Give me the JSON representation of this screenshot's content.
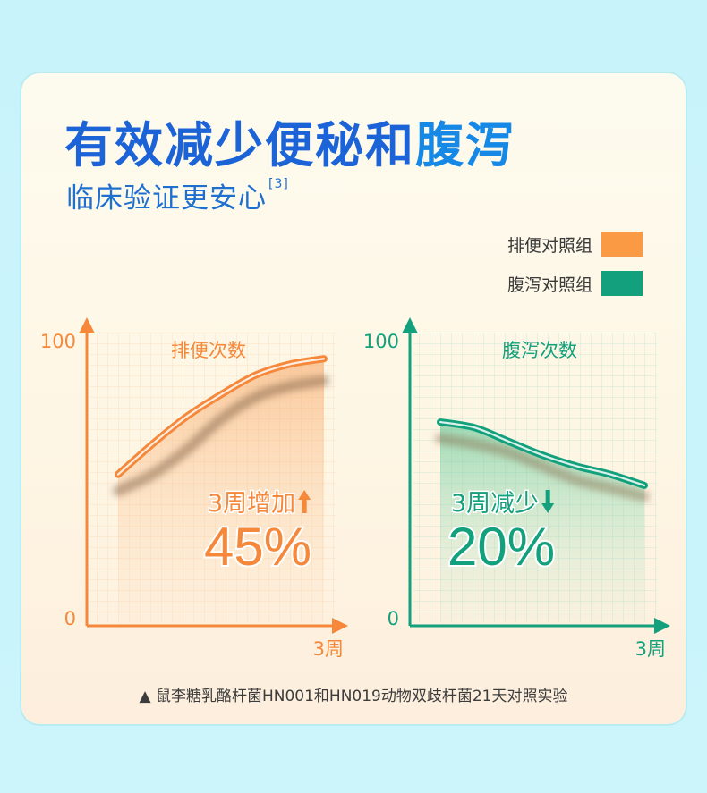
{
  "header": {
    "title_part1": "有效减少便秘和",
    "title_part2": "腹泻",
    "subtitle": "临床验证更安心",
    "citation": "[3]"
  },
  "legend": [
    {
      "label": "排便对照组",
      "color": "#fb9a45"
    },
    {
      "label": "腹泻对照组",
      "color": "#13a07c"
    }
  ],
  "chart_data": [
    {
      "type": "line",
      "title": "排便次数",
      "y_tick_labels": [
        "0",
        "100"
      ],
      "x_tick_labels": [
        "3周"
      ],
      "ylim": [
        0,
        100
      ],
      "color": "#f5883a",
      "grid": true,
      "series": [
        {
          "values": [
            [
              0,
              55
            ],
            [
              0.5,
              66
            ],
            [
              1,
              76
            ],
            [
              1.5,
              84
            ],
            [
              2,
              91
            ],
            [
              2.5,
              95
            ],
            [
              3,
              97
            ]
          ]
        },
        {
          "values": [
            [
              0,
              49
            ],
            [
              0.5,
              55
            ],
            [
              1,
              64
            ],
            [
              1.5,
              75
            ],
            [
              2,
              83
            ],
            [
              2.5,
              87
            ],
            [
              3,
              89
            ]
          ]
        }
      ],
      "annotation_label": "3周增加",
      "annotation_value": "45%",
      "arrow": "up"
    },
    {
      "type": "line",
      "title": "腹泻次数",
      "y_tick_labels": [
        "0",
        "100"
      ],
      "x_tick_labels": [
        "3周"
      ],
      "ylim": [
        0,
        100
      ],
      "color": "#13a07c",
      "grid": true,
      "series": [
        {
          "values": [
            [
              0,
              74
            ],
            [
              0.5,
              72
            ],
            [
              1,
              67
            ],
            [
              1.5,
              62
            ],
            [
              2,
              58
            ],
            [
              2.5,
              55
            ],
            [
              3,
              51
            ]
          ]
        },
        {
          "values": [
            [
              0,
              68
            ],
            [
              0.5,
              66
            ],
            [
              1,
              63
            ],
            [
              1.5,
              58
            ],
            [
              2,
              53
            ],
            [
              2.5,
              50
            ],
            [
              3,
              47
            ]
          ]
        }
      ],
      "annotation_label": "3周减少",
      "annotation_value": "20%",
      "arrow": "down"
    }
  ],
  "footnote": "▲ 鼠李糖乳酪杆菌HN001和HN019动物双歧杆菌21天对照实验"
}
